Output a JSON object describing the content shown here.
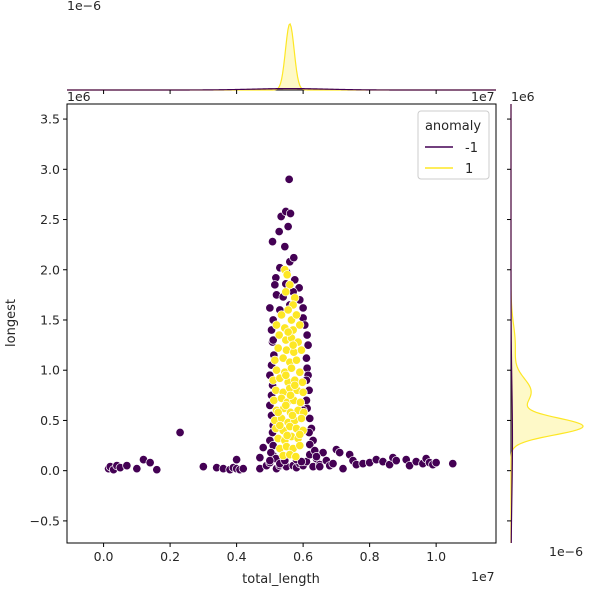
{
  "chart_data": {
    "type": "scatter",
    "kind": "jointplot",
    "xlabel": "total_length",
    "ylabel": "longest",
    "x_scale_label": "1e7",
    "y_scale_label": "1e6",
    "top_kde_scale_label": "1e−6",
    "right_kde_scale_label": "1e−6",
    "xlim": [
      -0.11,
      1.18
    ],
    "ylim": [
      -0.72,
      3.65
    ],
    "x_ticks": [
      0.0,
      0.2,
      0.4,
      0.6,
      0.8,
      1.0
    ],
    "x_tick_labels": [
      "0.0",
      "0.2",
      "0.4",
      "0.6",
      "0.8",
      "1.0"
    ],
    "y_ticks": [
      -0.5,
      0.0,
      0.5,
      1.0,
      1.5,
      2.0,
      2.5,
      3.0,
      3.5
    ],
    "y_tick_labels": [
      "−0.5",
      "0.0",
      "0.5",
      "1.0",
      "1.5",
      "2.0",
      "2.5",
      "3.0",
      "3.5"
    ],
    "legend": {
      "title": "anomaly",
      "placement": "top-right",
      "entries": [
        {
          "label": "-1",
          "color": "#440154"
        },
        {
          "label": "1",
          "color": "#fde725"
        }
      ]
    },
    "series": [
      {
        "name": "-1",
        "color": "#440154",
        "points": [
          [
            0.015,
            0.02
          ],
          [
            0.02,
            0.04
          ],
          [
            0.03,
            0.01
          ],
          [
            0.04,
            0.05
          ],
          [
            0.05,
            0.03
          ],
          [
            0.07,
            0.05
          ],
          [
            0.1,
            0.02
          ],
          [
            0.12,
            0.11
          ],
          [
            0.14,
            0.08
          ],
          [
            0.16,
            0.01
          ],
          [
            0.23,
            0.38
          ],
          [
            0.3,
            0.04
          ],
          [
            0.34,
            0.03
          ],
          [
            0.36,
            0.02
          ],
          [
            0.38,
            0.01
          ],
          [
            0.39,
            0.03
          ],
          [
            0.4,
            0.11
          ],
          [
            0.4,
            0.02
          ],
          [
            0.41,
            0.01
          ],
          [
            0.42,
            0.02
          ],
          [
            0.47,
            0.02
          ],
          [
            0.47,
            0.13
          ],
          [
            0.48,
            0.23
          ],
          [
            0.49,
            0.05
          ],
          [
            0.5,
            0.08
          ],
          [
            0.51,
            0.15
          ],
          [
            0.52,
            0.12
          ],
          [
            0.52,
            0.02
          ],
          [
            0.53,
            0.05
          ],
          [
            0.54,
            0.06
          ],
          [
            0.55,
            0.04
          ],
          [
            0.57,
            0.05
          ],
          [
            0.58,
            0.03
          ],
          [
            0.59,
            0.07
          ],
          [
            0.6,
            0.05
          ],
          [
            0.61,
            0.09
          ],
          [
            0.62,
            0.16
          ],
          [
            0.63,
            0.04
          ],
          [
            0.64,
            0.12
          ],
          [
            0.65,
            0.06
          ],
          [
            0.66,
            0.18
          ],
          [
            0.67,
            0.1
          ],
          [
            0.68,
            0.05
          ],
          [
            0.69,
            0.07
          ],
          [
            0.7,
            0.21
          ],
          [
            0.71,
            0.18
          ],
          [
            0.72,
            0.02
          ],
          [
            0.74,
            0.16
          ],
          [
            0.75,
            0.1
          ],
          [
            0.76,
            0.06
          ],
          [
            0.78,
            0.07
          ],
          [
            0.8,
            0.08
          ],
          [
            0.82,
            0.11
          ],
          [
            0.84,
            0.09
          ],
          [
            0.86,
            0.06
          ],
          [
            0.87,
            0.13
          ],
          [
            0.88,
            0.1
          ],
          [
            0.91,
            0.11
          ],
          [
            0.92,
            0.05
          ],
          [
            0.94,
            0.09
          ],
          [
            0.96,
            0.07
          ],
          [
            0.97,
            0.12
          ],
          [
            0.98,
            0.08
          ],
          [
            0.99,
            0.06
          ],
          [
            1.0,
            0.08
          ],
          [
            1.05,
            0.07
          ],
          [
            0.508,
            2.28
          ],
          [
            0.518,
            1.92
          ],
          [
            0.528,
            2.38
          ],
          [
            0.534,
            2.53
          ],
          [
            0.548,
            2.58
          ],
          [
            0.555,
            2.43
          ],
          [
            0.562,
            2.56
          ],
          [
            0.558,
            2.9
          ],
          [
            0.545,
            2.23
          ],
          [
            0.56,
            2.08
          ],
          [
            0.572,
            2.12
          ],
          [
            0.53,
            2.02
          ],
          [
            0.55,
            1.98
          ],
          [
            0.575,
            1.9
          ],
          [
            0.515,
            1.85
          ],
          [
            0.548,
            1.86
          ],
          [
            0.588,
            1.82
          ],
          [
            0.52,
            1.75
          ],
          [
            0.54,
            1.73
          ],
          [
            0.57,
            1.78
          ],
          [
            0.59,
            1.7
          ],
          [
            0.5,
            1.62
          ],
          [
            0.53,
            1.6
          ],
          [
            0.56,
            1.65
          ],
          [
            0.6,
            1.62
          ],
          [
            0.51,
            1.5
          ],
          [
            0.6,
            1.52
          ],
          [
            0.605,
            1.45
          ],
          [
            0.505,
            1.4
          ],
          [
            0.612,
            1.35
          ],
          [
            0.508,
            1.28
          ],
          [
            0.615,
            1.25
          ],
          [
            0.512,
            1.15
          ],
          [
            0.61,
            1.12
          ],
          [
            0.505,
            1.05
          ],
          [
            0.612,
            1.02
          ],
          [
            0.5,
            0.95
          ],
          [
            0.615,
            0.95
          ],
          [
            0.508,
            0.85
          ],
          [
            0.618,
            0.8
          ],
          [
            0.505,
            0.75
          ],
          [
            0.61,
            0.7
          ],
          [
            0.5,
            0.65
          ],
          [
            0.612,
            0.62
          ],
          [
            0.505,
            0.55
          ],
          [
            0.62,
            0.52
          ],
          [
            0.51,
            0.45
          ],
          [
            0.625,
            0.42
          ],
          [
            0.508,
            0.38
          ],
          [
            0.618,
            0.38
          ],
          [
            0.5,
            0.3
          ],
          [
            0.63,
            0.3
          ],
          [
            0.51,
            0.25
          ],
          [
            0.62,
            0.26
          ],
          [
            0.503,
            0.18
          ],
          [
            0.635,
            0.2
          ],
          [
            0.518,
            0.12
          ],
          [
            0.64,
            0.14
          ],
          [
            0.53,
            0.07
          ],
          [
            0.5,
            0.1
          ],
          [
            0.545,
            0.1
          ],
          [
            0.58,
            0.11
          ],
          [
            0.595,
            0.09
          ],
          [
            0.65,
            0.04
          ],
          [
            0.6,
            0.6
          ],
          [
            0.52,
            0.6
          ],
          [
            0.61,
            0.9
          ],
          [
            0.51,
            1.3
          ]
        ]
      },
      {
        "name": "1",
        "color": "#fde725",
        "points": [
          [
            0.545,
            2.0
          ],
          [
            0.552,
            1.95
          ],
          [
            0.575,
            1.72
          ],
          [
            0.56,
            1.85
          ],
          [
            0.548,
            1.78
          ],
          [
            0.57,
            1.65
          ],
          [
            0.535,
            1.55
          ],
          [
            0.555,
            1.6
          ],
          [
            0.565,
            1.5
          ],
          [
            0.58,
            1.55
          ],
          [
            0.52,
            1.45
          ],
          [
            0.545,
            1.42
          ],
          [
            0.57,
            1.4
          ],
          [
            0.59,
            1.45
          ],
          [
            0.528,
            1.35
          ],
          [
            0.548,
            1.3
          ],
          [
            0.565,
            1.32
          ],
          [
            0.585,
            1.28
          ],
          [
            0.525,
            1.22
          ],
          [
            0.55,
            1.2
          ],
          [
            0.572,
            1.18
          ],
          [
            0.595,
            1.2
          ],
          [
            0.515,
            1.1
          ],
          [
            0.54,
            1.12
          ],
          [
            0.56,
            1.08
          ],
          [
            0.58,
            1.1
          ],
          [
            0.52,
            1.0
          ],
          [
            0.545,
            0.98
          ],
          [
            0.565,
            1.02
          ],
          [
            0.59,
            0.98
          ],
          [
            0.51,
            0.9
          ],
          [
            0.53,
            0.92
          ],
          [
            0.555,
            0.88
          ],
          [
            0.575,
            0.9
          ],
          [
            0.598,
            0.88
          ],
          [
            0.518,
            0.8
          ],
          [
            0.54,
            0.78
          ],
          [
            0.56,
            0.82
          ],
          [
            0.582,
            0.8
          ],
          [
            0.6,
            0.78
          ],
          [
            0.512,
            0.7
          ],
          [
            0.535,
            0.72
          ],
          [
            0.552,
            0.68
          ],
          [
            0.572,
            0.7
          ],
          [
            0.592,
            0.68
          ],
          [
            0.52,
            0.6
          ],
          [
            0.542,
            0.62
          ],
          [
            0.562,
            0.58
          ],
          [
            0.585,
            0.6
          ],
          [
            0.602,
            0.58
          ],
          [
            0.515,
            0.5
          ],
          [
            0.535,
            0.52
          ],
          [
            0.555,
            0.48
          ],
          [
            0.575,
            0.5
          ],
          [
            0.595,
            0.52
          ],
          [
            0.518,
            0.42
          ],
          [
            0.54,
            0.4
          ],
          [
            0.56,
            0.44
          ],
          [
            0.58,
            0.42
          ],
          [
            0.6,
            0.4
          ],
          [
            0.525,
            0.32
          ],
          [
            0.545,
            0.3
          ],
          [
            0.565,
            0.34
          ],
          [
            0.585,
            0.32
          ],
          [
            0.53,
            0.22
          ],
          [
            0.55,
            0.24
          ],
          [
            0.57,
            0.22
          ],
          [
            0.59,
            0.25
          ],
          [
            0.54,
            0.15
          ],
          [
            0.56,
            0.16
          ],
          [
            0.578,
            0.14
          ],
          [
            0.552,
            0.35
          ],
          [
            0.568,
            0.55
          ],
          [
            0.548,
            0.65
          ],
          [
            0.562,
            0.75
          ],
          [
            0.548,
            0.95
          ],
          [
            0.57,
            1.25
          ],
          [
            0.555,
            1.38
          ],
          [
            0.575,
            0.85
          ],
          [
            0.53,
            0.45
          ],
          [
            0.59,
            0.36
          ],
          [
            0.525,
            0.58
          ]
        ]
      }
    ],
    "marginal_x": {
      "series": [
        {
          "name": "-1",
          "color": "#440154",
          "mean": 0.56,
          "sd": 0.11,
          "peak_frac": 0.02
        },
        {
          "name": "1",
          "color": "#fde725",
          "mean": 0.56,
          "sd": 0.013,
          "peak_frac": 0.92
        }
      ]
    },
    "marginal_y": {
      "series": [
        {
          "name": "-1",
          "color": "#440154",
          "mean": 0.3,
          "sd": 0.55,
          "peak_frac": 0.02
        },
        {
          "name": "1",
          "color": "#fde725",
          "components": [
            {
              "mean": 0.44,
              "sd": 0.085,
              "weight": 1.0
            },
            {
              "mean": 0.78,
              "sd": 0.14,
              "weight": 0.28
            },
            {
              "mean": 1.25,
              "sd": 0.2,
              "weight": 0.06
            }
          ]
        }
      ]
    }
  }
}
